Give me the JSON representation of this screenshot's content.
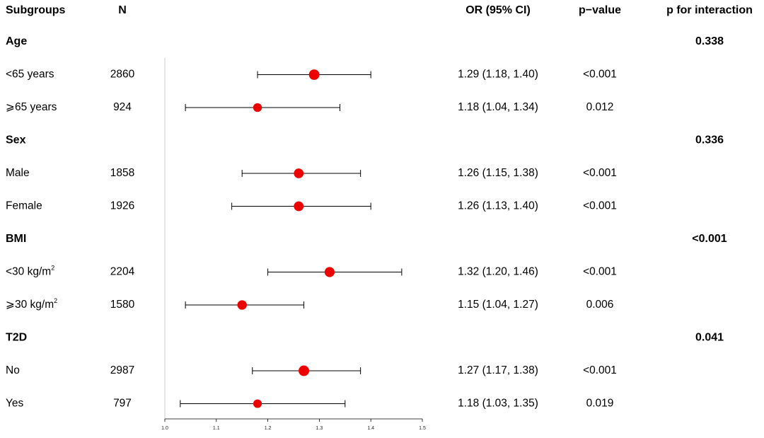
{
  "headers": {
    "subgroups": "Subgroups",
    "n": "N",
    "or_ci": "OR (95% CI)",
    "p_value": "p−value",
    "p_interaction": "p for interaction"
  },
  "chart_data": {
    "type": "forest",
    "x_ticks": [
      "1.0",
      "1.1",
      "1.2",
      "1.3",
      "1.4",
      "1.5"
    ],
    "x_range": [
      1.0,
      1.5
    ],
    "reference_line": 1.0,
    "rows": [
      {
        "kind": "group",
        "label": "Age",
        "p_interaction": "0.338"
      },
      {
        "kind": "sub",
        "label": "<65 years",
        "n": "2860",
        "or": 1.29,
        "lo": 1.18,
        "hi": 1.4,
        "ci_text": "1.29 (1.18, 1.40)",
        "p": "<0.001",
        "weight": 2860
      },
      {
        "kind": "sub",
        "label": "⩾65 years",
        "n": "924",
        "or": 1.18,
        "lo": 1.04,
        "hi": 1.34,
        "ci_text": "1.18 (1.04, 1.34)",
        "p": "0.012",
        "weight": 924
      },
      {
        "kind": "group",
        "label": "Sex",
        "p_interaction": "0.336"
      },
      {
        "kind": "sub",
        "label": "Male",
        "n": "1858",
        "or": 1.26,
        "lo": 1.15,
        "hi": 1.38,
        "ci_text": "1.26 (1.15, 1.38)",
        "p": "<0.001",
        "weight": 1858
      },
      {
        "kind": "sub",
        "label": "Female",
        "n": "1926",
        "or": 1.26,
        "lo": 1.13,
        "hi": 1.4,
        "ci_text": "1.26 (1.13, 1.40)",
        "p": "<0.001",
        "weight": 1926
      },
      {
        "kind": "group",
        "label": "BMI",
        "p_interaction": "<0.001"
      },
      {
        "kind": "sub",
        "label": "<30 kg/m",
        "sup": "2",
        "n": "2204",
        "or": 1.32,
        "lo": 1.2,
        "hi": 1.46,
        "ci_text": "1.32 (1.20, 1.46)",
        "p": "<0.001",
        "weight": 2204
      },
      {
        "kind": "sub",
        "label": "⩾30 kg/m",
        "sup": "2",
        "n": "1580",
        "or": 1.15,
        "lo": 1.04,
        "hi": 1.27,
        "ci_text": "1.15 (1.04, 1.27)",
        "p": "0.006",
        "weight": 1580
      },
      {
        "kind": "group",
        "label": "T2D",
        "p_interaction": "0.041"
      },
      {
        "kind": "sub",
        "label": "No",
        "n": "2987",
        "or": 1.27,
        "lo": 1.17,
        "hi": 1.38,
        "ci_text": "1.27 (1.17, 1.38)",
        "p": "<0.001",
        "weight": 2987
      },
      {
        "kind": "sub",
        "label": "Yes",
        "n": "797",
        "or": 1.18,
        "lo": 1.03,
        "hi": 1.35,
        "ci_text": "1.18 (1.03, 1.35)",
        "p": "0.019",
        "weight": 797
      }
    ],
    "colors": {
      "point": "#ee0000",
      "line": "#000000",
      "ref": "#cccccc"
    }
  }
}
